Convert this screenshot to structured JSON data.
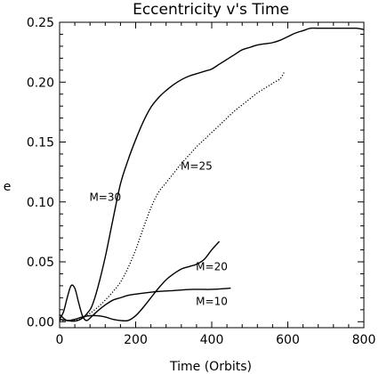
{
  "chart_data": {
    "type": "line",
    "title": "Eccentricity v's Time",
    "xlabel": "Time (Orbits)",
    "ylabel": "e",
    "xlim": [
      0,
      800
    ],
    "ylim": [
      -0.005,
      0.25
    ],
    "xticks": [
      0,
      200,
      400,
      600,
      800
    ],
    "xtick_labels": [
      "0",
      "200",
      "400",
      "600",
      "800"
    ],
    "yticks": [
      0.0,
      0.05,
      0.1,
      0.15,
      0.2,
      0.25
    ],
    "ytick_labels": [
      "0.00",
      "0.05",
      "0.10",
      "0.15",
      "0.20",
      "0.25"
    ],
    "grid": false,
    "legend": "none",
    "series": [
      {
        "name": "M=30",
        "style": "solid",
        "x": [
          0,
          20,
          40,
          60,
          75,
          85,
          100,
          120,
          140,
          160,
          180,
          200,
          220,
          240,
          260,
          280,
          300,
          320,
          340,
          360,
          380,
          400,
          420,
          440,
          460,
          480,
          500,
          520,
          540,
          560,
          580,
          600,
          620,
          640,
          660,
          680,
          700,
          720,
          740,
          760,
          780,
          800
        ],
        "y": [
          0.002,
          0.001,
          0.0005,
          0.003,
          0.008,
          0.013,
          0.028,
          0.054,
          0.085,
          0.115,
          0.135,
          0.152,
          0.167,
          0.179,
          0.187,
          0.193,
          0.198,
          0.202,
          0.205,
          0.207,
          0.209,
          0.211,
          0.215,
          0.219,
          0.223,
          0.227,
          0.229,
          0.231,
          0.232,
          0.233,
          0.235,
          0.238,
          0.241,
          0.243,
          0.245,
          0.245,
          0.245,
          0.245,
          0.245,
          0.245,
          0.245,
          0.244
        ]
      },
      {
        "name": "M=25",
        "style": "dotted",
        "x": [
          0,
          20,
          40,
          60,
          80,
          100,
          120,
          140,
          160,
          180,
          200,
          220,
          240,
          260,
          280,
          300,
          320,
          340,
          360,
          380,
          400,
          420,
          440,
          460,
          480,
          500,
          520,
          540,
          560,
          580,
          590
        ],
        "y": [
          0.001,
          0.001,
          0.001,
          0.003,
          0.007,
          0.012,
          0.018,
          0.025,
          0.033,
          0.045,
          0.06,
          0.078,
          0.095,
          0.108,
          0.116,
          0.124,
          0.132,
          0.139,
          0.146,
          0.152,
          0.158,
          0.164,
          0.17,
          0.176,
          0.181,
          0.186,
          0.191,
          0.195,
          0.199,
          0.203,
          0.208
        ]
      },
      {
        "name": "M=20",
        "style": "solid",
        "x": [
          0,
          10,
          20,
          40,
          60,
          80,
          100,
          120,
          140,
          160,
          180,
          200,
          220,
          240,
          260,
          280,
          300,
          320,
          340,
          360,
          380,
          400,
          420
        ],
        "y": [
          0.006,
          0.003,
          0.001,
          0.002,
          0.004,
          0.005,
          0.005,
          0.004,
          0.002,
          0.001,
          0.001,
          0.005,
          0.012,
          0.02,
          0.028,
          0.035,
          0.04,
          0.044,
          0.046,
          0.048,
          0.052,
          0.06,
          0.067
        ]
      },
      {
        "name": "M=10",
        "style": "solid",
        "x": [
          0,
          10,
          20,
          30,
          40,
          50,
          60,
          70,
          80,
          100,
          120,
          140,
          160,
          180,
          200,
          250,
          300,
          350,
          400,
          450
        ],
        "y": [
          0.002,
          0.008,
          0.02,
          0.03,
          0.028,
          0.016,
          0.005,
          0.001,
          0.003,
          0.009,
          0.014,
          0.018,
          0.02,
          0.022,
          0.023,
          0.025,
          0.026,
          0.027,
          0.027,
          0.028
        ]
      }
    ],
    "annotations": [
      {
        "text": "M=30",
        "x": 120,
        "y": 0.101
      },
      {
        "text": "M=25",
        "x": 360,
        "y": 0.127
      },
      {
        "text": "M=20",
        "x": 400,
        "y": 0.043
      },
      {
        "text": "M=10",
        "x": 400,
        "y": 0.014
      }
    ]
  }
}
